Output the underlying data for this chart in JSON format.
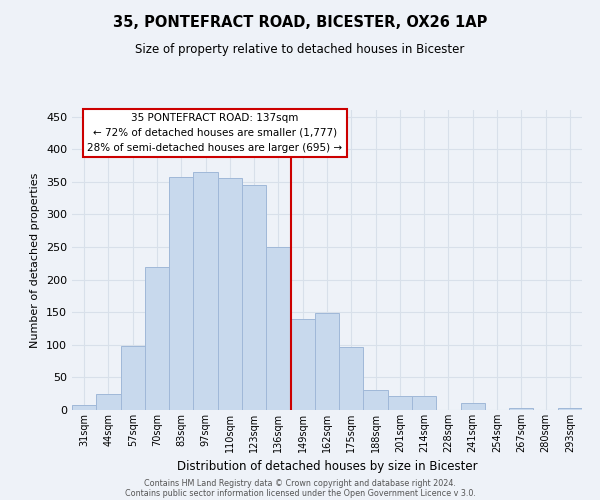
{
  "title1": "35, PONTEFRACT ROAD, BICESTER, OX26 1AP",
  "title2": "Size of property relative to detached houses in Bicester",
  "xlabel": "Distribution of detached houses by size in Bicester",
  "ylabel": "Number of detached properties",
  "bar_color": "#c8d9ed",
  "bar_edge_color": "#a0b8d8",
  "bin_labels": [
    "31sqm",
    "44sqm",
    "57sqm",
    "70sqm",
    "83sqm",
    "97sqm",
    "110sqm",
    "123sqm",
    "136sqm",
    "149sqm",
    "162sqm",
    "175sqm",
    "188sqm",
    "201sqm",
    "214sqm",
    "228sqm",
    "241sqm",
    "254sqm",
    "267sqm",
    "280sqm",
    "293sqm"
  ],
  "bar_heights": [
    8,
    25,
    98,
    220,
    358,
    365,
    355,
    345,
    250,
    140,
    148,
    96,
    30,
    22,
    22,
    0,
    10,
    0,
    3,
    0,
    3
  ],
  "reference_line_x": 8.5,
  "reference_line_color": "#cc0000",
  "ylim": [
    0,
    460
  ],
  "yticks": [
    0,
    50,
    100,
    150,
    200,
    250,
    300,
    350,
    400,
    450
  ],
  "annotation_title": "35 PONTEFRACT ROAD: 137sqm",
  "annotation_line1": "← 72% of detached houses are smaller (1,777)",
  "annotation_line2": "28% of semi-detached houses are larger (695) →",
  "annotation_box_color": "#ffffff",
  "annotation_box_edge": "#cc0000",
  "footer1": "Contains HM Land Registry data © Crown copyright and database right 2024.",
  "footer2": "Contains public sector information licensed under the Open Government Licence v 3.0.",
  "grid_color": "#d8e0ea",
  "background_color": "#eef2f8"
}
